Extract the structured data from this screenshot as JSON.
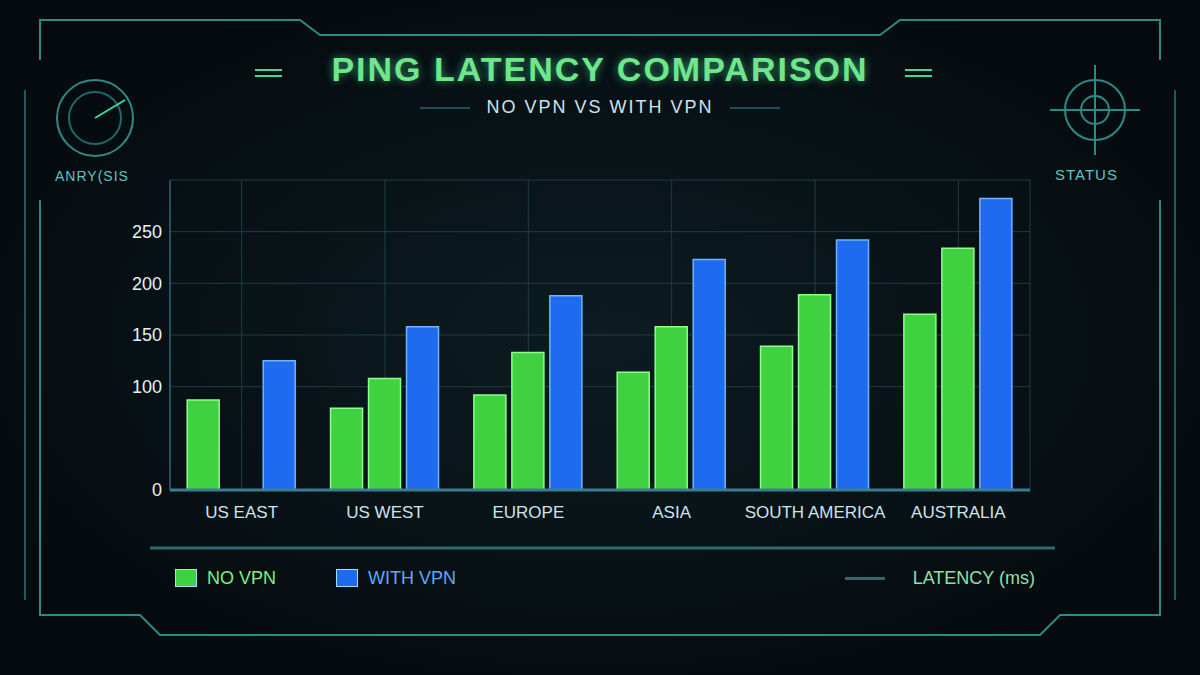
{
  "chart_data": {
    "type": "bar",
    "title": "PING LATENCY COMPARISON",
    "subtitle": "NO VPN VS WITH VPN",
    "y_label": "LATENCY (ms)",
    "annotations": [
      "ANRY(SIS",
      "STATUS"
    ],
    "categories": [
      "US EAST",
      "US WEST",
      "EUROPE",
      "ASIA",
      "SOUTH AMERICA",
      "AUSTRALIA"
    ],
    "series": [
      {
        "name": "NO VPN",
        "color": "#3fd13f",
        "values": [
          87,
          79,
          92,
          114,
          139,
          170
        ]
      },
      {
        "color": "#3fd13f",
        "values": [
          null,
          108,
          133,
          158,
          189,
          234
        ]
      },
      {
        "name": "WITH VPN",
        "color": "#1e6bf0",
        "values": [
          125,
          158,
          188,
          223,
          242,
          282
        ]
      }
    ],
    "ylim": [
      0,
      300
    ],
    "yticks": [
      0,
      100,
      150,
      200,
      250
    ],
    "grid": true,
    "legend": "bottom"
  }
}
